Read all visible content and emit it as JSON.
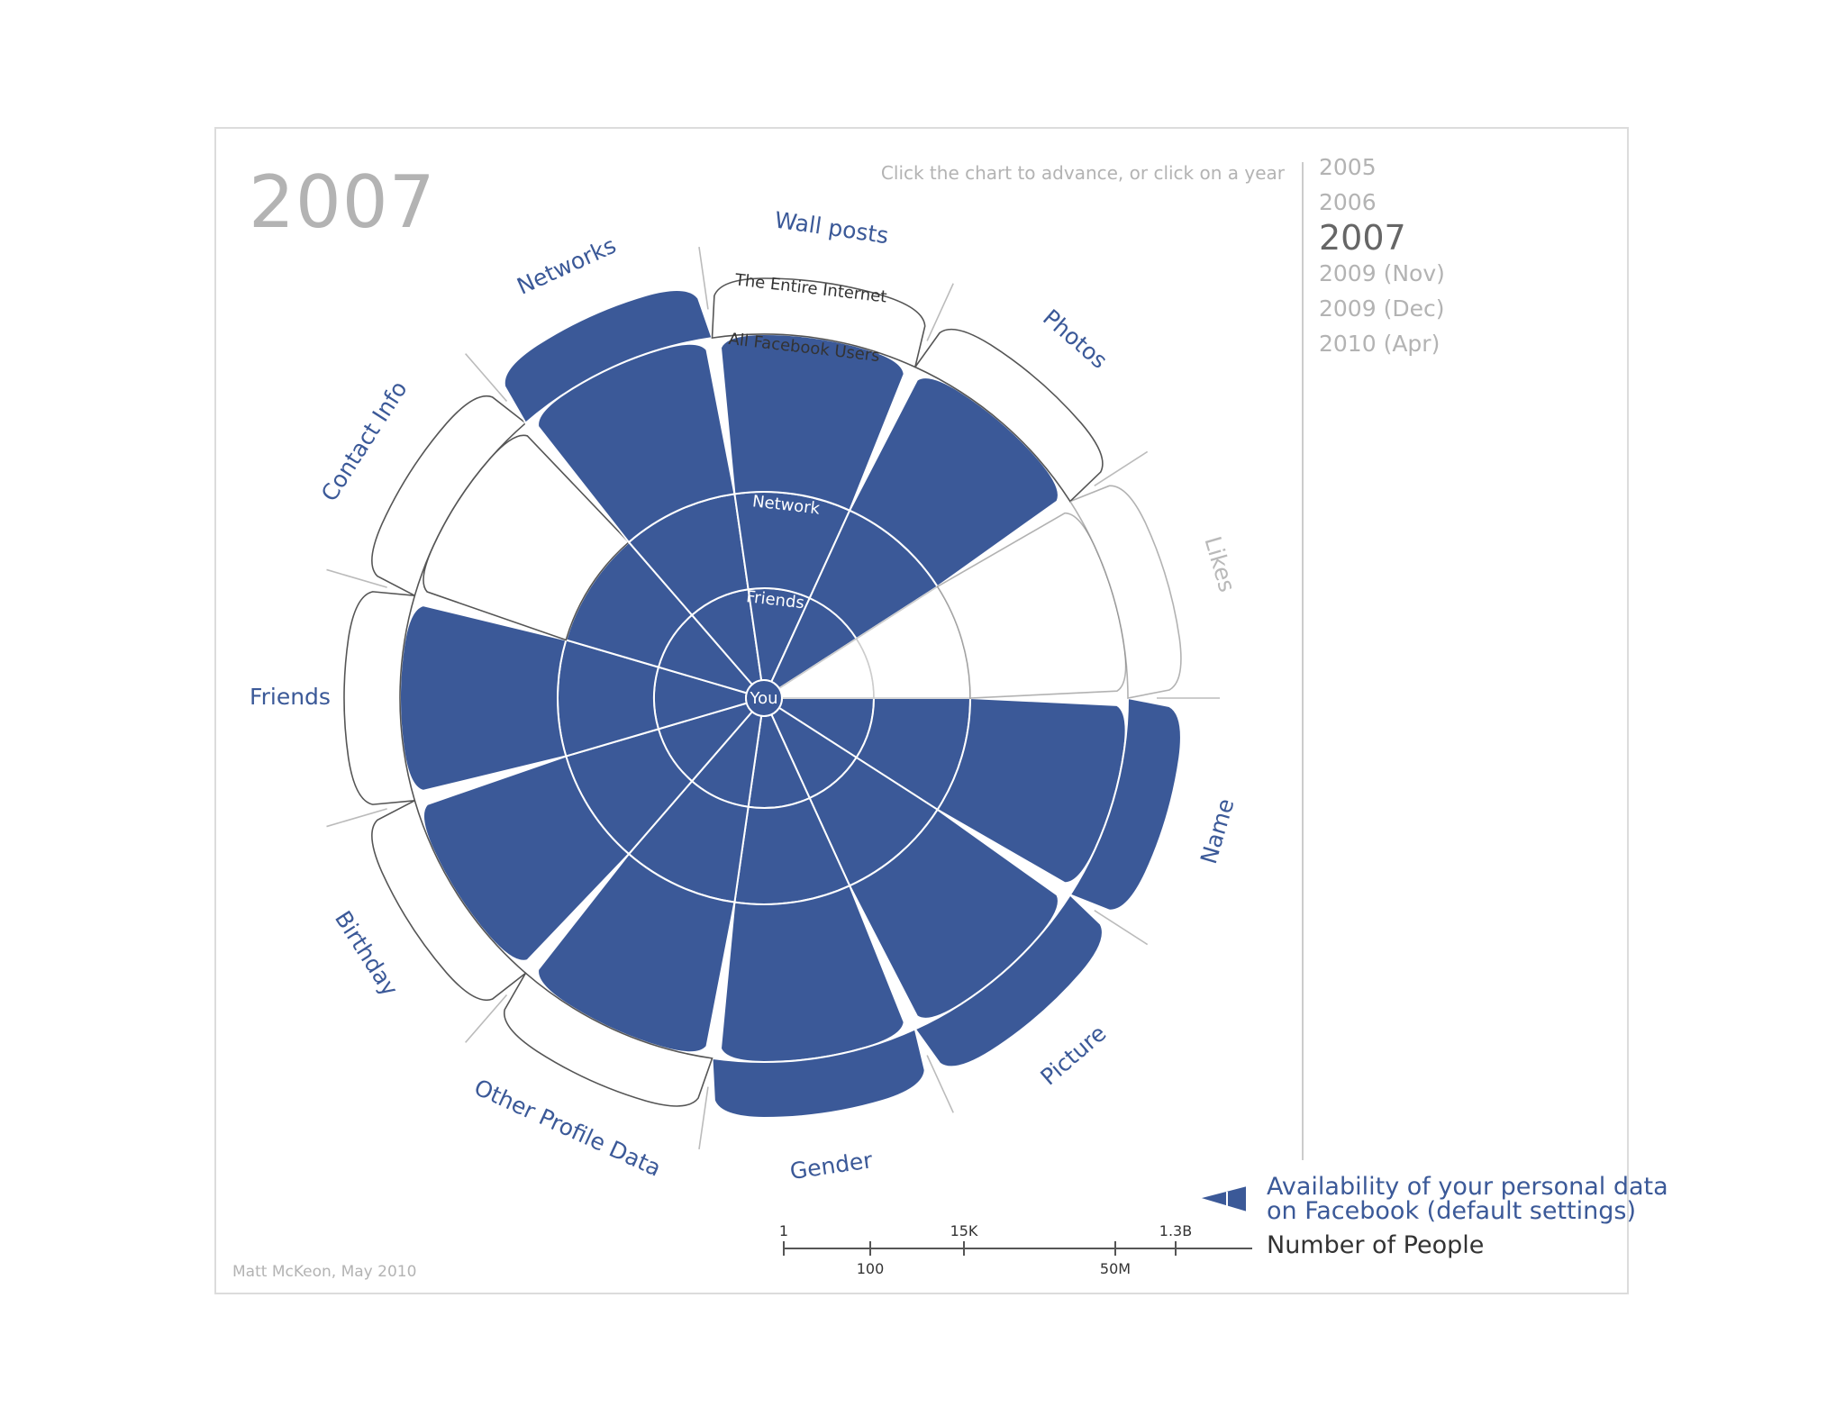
{
  "title": "2007",
  "hint": "Click the chart to advance, or click on a year",
  "years": [
    "2005",
    "2006",
    "2007",
    "2009 (Nov)",
    "2009 (Dec)",
    "2010 (Apr)"
  ],
  "active_year": "2007",
  "credit": "Matt McKeon, May 2010",
  "legend": {
    "availability_line1": "Availability of your personal data",
    "availability_line2": "on Facebook (default settings)",
    "people": "Number of People"
  },
  "colors": {
    "fill": "#3b5998",
    "ring_line": "#cccccc",
    "outer_line": "#555555",
    "inactive_label": "#b9b9b9"
  },
  "chart_data": {
    "type": "radial",
    "title": "2007",
    "rings": [
      "You",
      "Friends",
      "Network",
      "All Facebook Users",
      "The Entire Internet"
    ],
    "categories": [
      "Name",
      "Picture",
      "Gender",
      "Other Profile Data",
      "Birthday",
      "Friends",
      "Contact Info",
      "Networks",
      "Wall posts",
      "Photos",
      "Likes"
    ],
    "category_active": [
      true,
      true,
      true,
      true,
      true,
      true,
      true,
      true,
      true,
      true,
      false
    ],
    "values": [
      4,
      4,
      4,
      3,
      3,
      3,
      2,
      4,
      3,
      3,
      0
    ],
    "scale": {
      "label": "Number of People",
      "ticks_top": [
        "1",
        "15K",
        "1.3B"
      ],
      "ticks_bottom": [
        "100",
        "50M"
      ]
    }
  }
}
